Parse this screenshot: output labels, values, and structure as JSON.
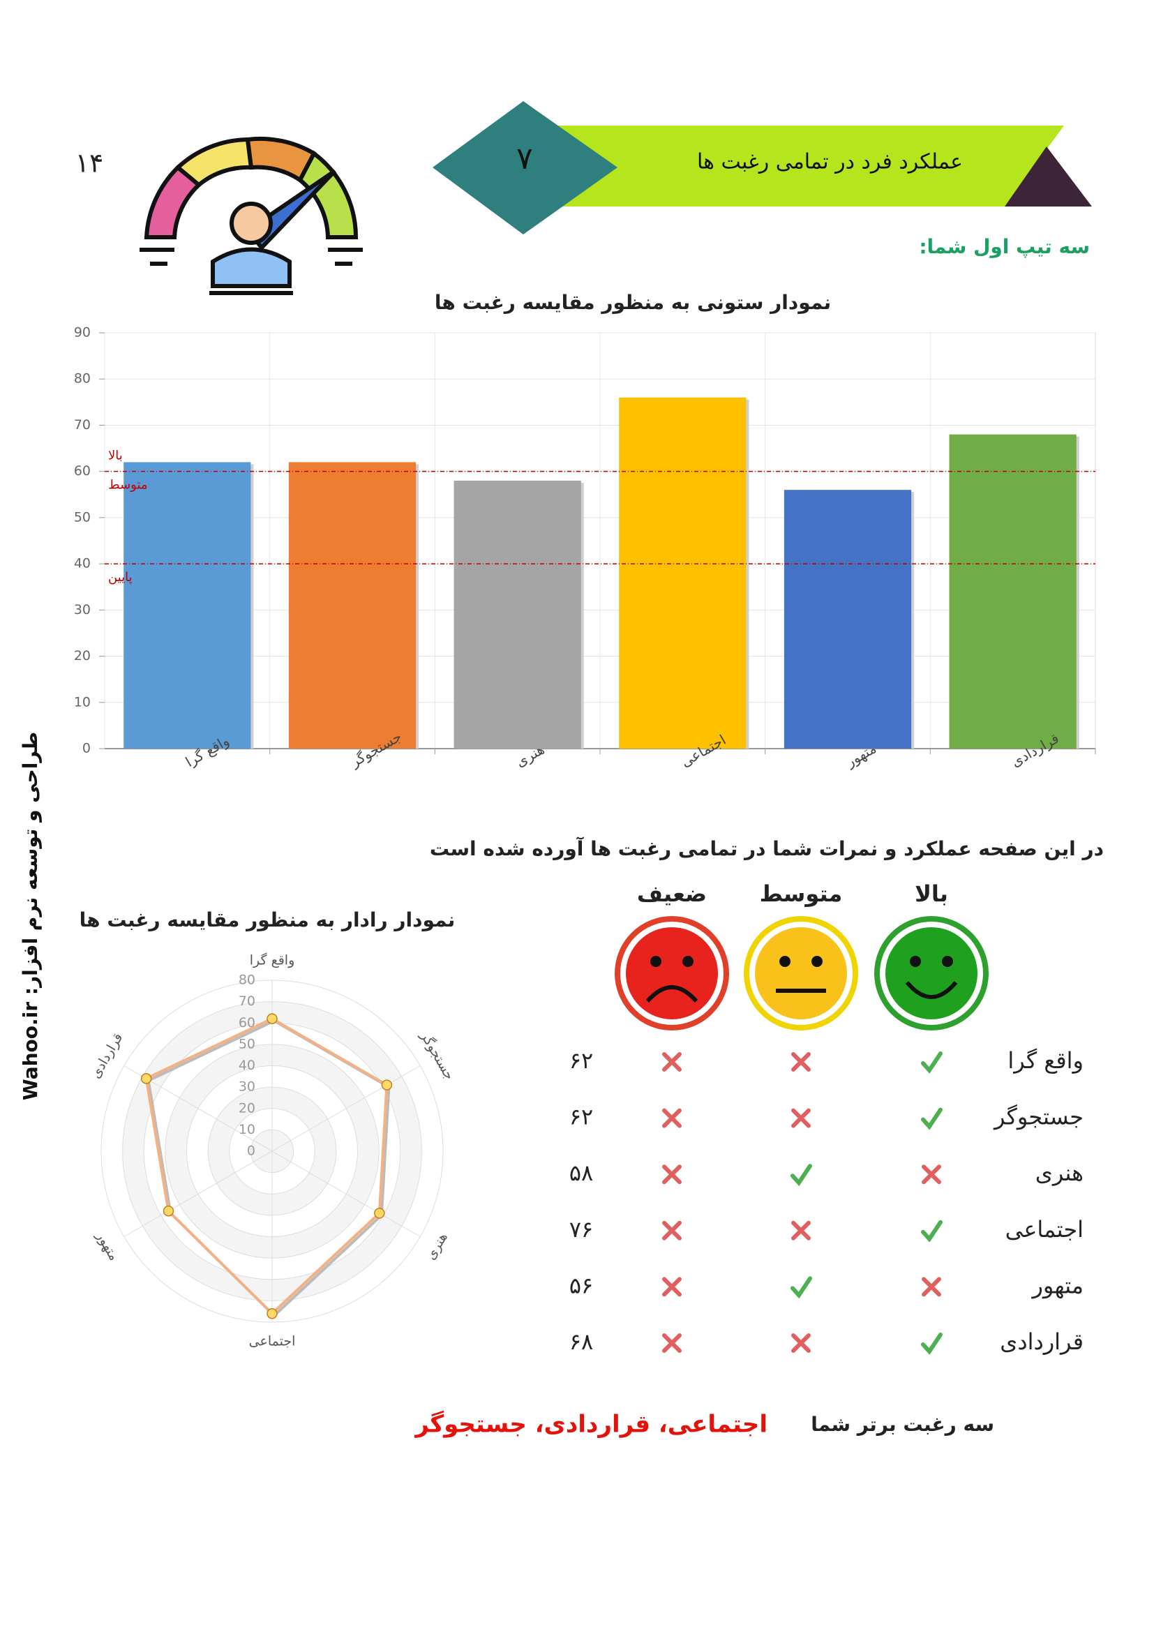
{
  "page_number": "۱۴",
  "header": {
    "number": "۷",
    "title": "عملکرد فرد در تمامی رغبت ها"
  },
  "subtitle": "سه تیپ اول شما:",
  "sidebar": "طراحی و توسعه نرم افزار: Wahoo.ir",
  "chart_data": [
    {
      "type": "bar",
      "title": "نمودار ستونی به منظور مقایسه رغبت ها",
      "categories": [
        "واقع گرا",
        "جستجوگر",
        "هنری",
        "اجتماعی",
        "متهور",
        "قراردادی"
      ],
      "values": [
        62,
        62,
        58,
        76,
        56,
        68
      ],
      "colors": [
        "#5b9bd5",
        "#ed7d31",
        "#a5a5a5",
        "#ffc000",
        "#4472c4",
        "#70ad47"
      ],
      "ylim": [
        0,
        90
      ],
      "yticks": [
        0,
        10,
        20,
        30,
        40,
        50,
        60,
        70,
        80,
        90
      ],
      "grid": true,
      "reference_lines": [
        {
          "value": 60,
          "label_above": "بالا",
          "label_below": "متوسط"
        },
        {
          "value": 40,
          "label_below": "پایین"
        }
      ]
    },
    {
      "type": "radar",
      "title": "نمودار رادار به منظور مقایسه رغبت ها",
      "categories": [
        "واقع گرا",
        "جستجوگر",
        "هنری",
        "اجتماعی",
        "متهور",
        "قراردادی"
      ],
      "values": [
        62,
        62,
        58,
        76,
        56,
        68
      ],
      "color": "#f4b183",
      "rlim": [
        0,
        80
      ],
      "rticks": [
        0,
        10,
        20,
        30,
        40,
        50,
        60,
        70,
        80
      ]
    }
  ],
  "description": "در این صفحه عملکرد و نمرات شما در تمامی رغبت ها آورده شده است",
  "table": {
    "columns": [
      "بالا",
      "متوسط",
      "ضعیف"
    ],
    "rows": [
      {
        "name": "واقع گرا",
        "checks": [
          true,
          false,
          false
        ],
        "score": "۶۲"
      },
      {
        "name": "جستجوگر",
        "checks": [
          true,
          false,
          false
        ],
        "score": "۶۲"
      },
      {
        "name": "هنری",
        "checks": [
          false,
          true,
          false
        ],
        "score": "۵۸"
      },
      {
        "name": "اجتماعی",
        "checks": [
          true,
          false,
          false
        ],
        "score": "۷۶"
      },
      {
        "name": "متهور",
        "checks": [
          false,
          true,
          false
        ],
        "score": "۵۶"
      },
      {
        "name": "قراردادی",
        "checks": [
          true,
          false,
          false
        ],
        "score": "۶۸"
      }
    ]
  },
  "footer": {
    "label": "سه رغبت برتر شما",
    "value": "اجتماعی، قراردادی، جستجوگر"
  }
}
